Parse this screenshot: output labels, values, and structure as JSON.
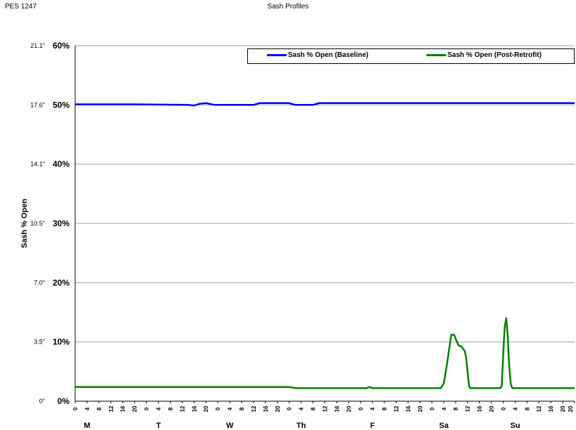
{
  "header": {
    "left_text": "PES 1247",
    "center_text": "Sash Profiles"
  },
  "chart_data": {
    "type": "line",
    "title": "Sash Profiles",
    "ylabel": "Sash % Open",
    "ylim": [
      0,
      60
    ],
    "y_ticks_primary": [
      "0%",
      "10%",
      "20%",
      "30%",
      "40%",
      "50%",
      "60%"
    ],
    "y_ticks_secondary": [
      "0\"",
      "3.5\"",
      "7.0\"",
      "10.5\"",
      "14.1\"",
      "17.6\"",
      "21.1\""
    ],
    "x_hour_labels": [
      "0",
      "4",
      "8",
      "12",
      "16",
      "20"
    ],
    "day_labels": [
      "M",
      "T",
      "W",
      "Th",
      "F",
      "Sa",
      "Su"
    ],
    "xlim_hours": [
      0,
      168
    ],
    "grid": true,
    "legend_position": "top-right",
    "series": [
      {
        "name": "Sash % Open (Baseline)",
        "color": "#0000ff",
        "points": [
          [
            0,
            50.1
          ],
          [
            20,
            50.1
          ],
          [
            38,
            50.0
          ],
          [
            40,
            49.9
          ],
          [
            42,
            50.2
          ],
          [
            44,
            50.3
          ],
          [
            47,
            50.0
          ],
          [
            60,
            50.0
          ],
          [
            62,
            50.3
          ],
          [
            72,
            50.3
          ],
          [
            74,
            50.0
          ],
          [
            80,
            50.0
          ],
          [
            82,
            50.3
          ],
          [
            168,
            50.3
          ]
        ]
      },
      {
        "name": "Sash % Open (Post-Retrofit)",
        "color": "#008000",
        "points": [
          [
            0,
            2.4
          ],
          [
            72,
            2.4
          ],
          [
            74,
            2.2
          ],
          [
            98,
            2.2
          ],
          [
            99,
            2.4
          ],
          [
            100,
            2.2
          ],
          [
            123,
            2.2
          ],
          [
            124,
            3.0
          ],
          [
            125,
            6.0
          ],
          [
            126,
            9.5
          ],
          [
            126.5,
            11.2
          ],
          [
            127.5,
            11.2
          ],
          [
            128,
            10.5
          ],
          [
            129,
            9.4
          ],
          [
            130,
            9.2
          ],
          [
            131,
            8.5
          ],
          [
            131.5,
            7.5
          ],
          [
            132,
            5.0
          ],
          [
            132.5,
            2.5
          ],
          [
            133,
            2.2
          ],
          [
            143,
            2.2
          ],
          [
            143.5,
            2.6
          ],
          [
            144,
            8.0
          ],
          [
            144.5,
            12.5
          ],
          [
            145,
            14.0
          ],
          [
            145.5,
            11.0
          ],
          [
            146,
            6.0
          ],
          [
            146.5,
            3.0
          ],
          [
            147,
            2.2
          ],
          [
            168,
            2.2
          ]
        ]
      }
    ]
  }
}
